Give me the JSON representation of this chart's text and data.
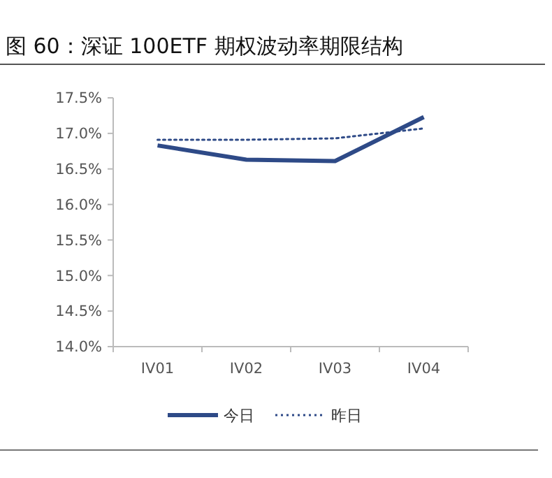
{
  "chart_data": {
    "type": "line",
    "title": "图 60：深证 100ETF 期权波动率期限结构",
    "categories": [
      "IV01",
      "IV02",
      "IV03",
      "IV04"
    ],
    "series": [
      {
        "name": "今日",
        "color": "#2e4a87",
        "values": [
          16.83,
          16.63,
          16.61,
          17.23
        ],
        "line_style": "solid"
      },
      {
        "name": "昨日",
        "color": "#2e4a87",
        "values": [
          16.91,
          16.91,
          16.93,
          17.07
        ],
        "line_style": "dotted"
      }
    ],
    "ylim": [
      14.0,
      17.5
    ],
    "yticks": [
      {
        "value": 14.0,
        "label": "14.0%"
      },
      {
        "value": 14.5,
        "label": "14.5%"
      },
      {
        "value": 15.0,
        "label": "15.0%"
      },
      {
        "value": 15.5,
        "label": "15.5%"
      },
      {
        "value": 16.0,
        "label": "16.0%"
      },
      {
        "value": 16.5,
        "label": "16.5%"
      },
      {
        "value": 17.0,
        "label": "17.0%"
      },
      {
        "value": 17.5,
        "label": "17.5%"
      }
    ],
    "grid": false,
    "legend": "bottom",
    "marker": "none"
  }
}
